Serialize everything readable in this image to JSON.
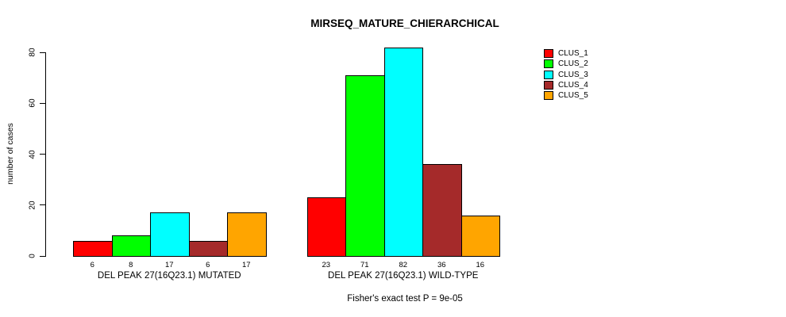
{
  "title": "MIRSEQ_MATURE_CHIERARCHICAL",
  "footnote": "Fisher's exact test P = 9e-05",
  "y_axis": {
    "label": "number of cases",
    "ticks": [
      0,
      20,
      40,
      60,
      80
    ]
  },
  "legend": {
    "position": "right",
    "items": [
      {
        "label": "CLUS_1",
        "color": "#FF0000"
      },
      {
        "label": "CLUS_2",
        "color": "#00FF00"
      },
      {
        "label": "CLUS_3",
        "color": "#00FFFF"
      },
      {
        "label": "CLUS_4",
        "color": "#A52A2A"
      },
      {
        "label": "CLUS_5",
        "color": "#FFA500"
      }
    ]
  },
  "chart_data": {
    "type": "bar",
    "title": "MIRSEQ_MATURE_CHIERARCHICAL",
    "ylabel": "number of cases",
    "xlabel": "",
    "ylim": [
      0,
      80
    ],
    "yticks": [
      0,
      20,
      40,
      60,
      80
    ],
    "grid": false,
    "legend_position": "right",
    "bar_value_labels": true,
    "categories": [
      "DEL PEAK 27(16Q23.1) MUTATED",
      "DEL PEAK 27(16Q23.1) WILD-TYPE"
    ],
    "series": [
      {
        "name": "CLUS_1",
        "color": "#FF0000",
        "values": [
          6,
          23
        ]
      },
      {
        "name": "CLUS_2",
        "color": "#00FF00",
        "values": [
          8,
          71
        ]
      },
      {
        "name": "CLUS_3",
        "color": "#00FFFF",
        "values": [
          17,
          82
        ]
      },
      {
        "name": "CLUS_4",
        "color": "#A52A2A",
        "values": [
          6,
          36
        ]
      },
      {
        "name": "CLUS_5",
        "color": "#FFA500",
        "values": [
          17,
          16
        ]
      }
    ],
    "annotation": "Fisher's exact test P = 9e-05"
  }
}
